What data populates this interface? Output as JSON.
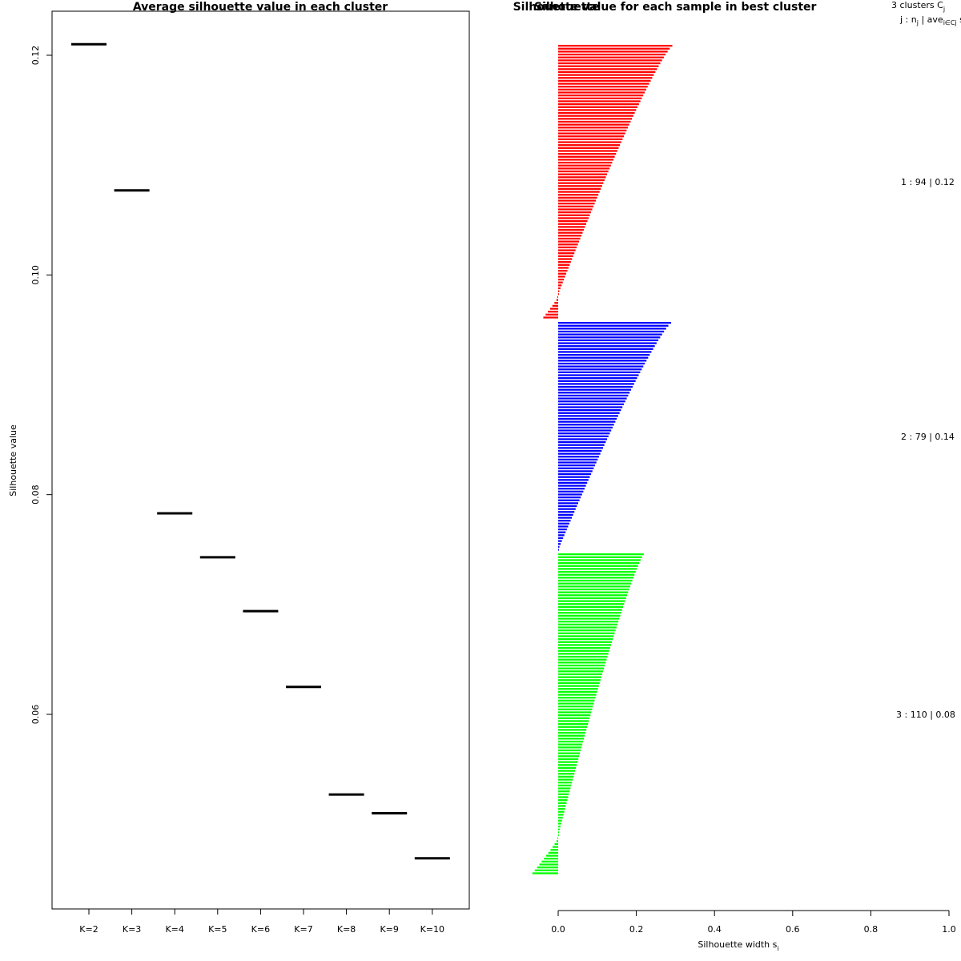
{
  "chart_data": [
    {
      "type": "line",
      "title": "Average silhouette value in each cluster",
      "xlabel": "",
      "ylabel": "Silhouette value",
      "categories": [
        "K=2",
        "K=3",
        "K=4",
        "K=5",
        "K=6",
        "K=7",
        "K=8",
        "K=9",
        "K=10"
      ],
      "values": [
        0.121,
        0.1077,
        0.0783,
        0.0743,
        0.0694,
        0.0625,
        0.0527,
        0.051,
        0.0469
      ],
      "ylim": [
        0.0455,
        0.124
      ],
      "yticks": [
        "0.06",
        "0.08",
        "0.10",
        "0.12"
      ],
      "grid": false
    },
    {
      "type": "bar",
      "title": "Silhouette value for each sample in best cluster",
      "overlap_text": "Silhouette",
      "xlabel": "Silhouette width s",
      "xlabel_sub": "i",
      "xlim": [
        0,
        1
      ],
      "xticks": [
        "0.0",
        "0.2",
        "0.4",
        "0.6",
        "0.8",
        "1.0"
      ],
      "legend_header": {
        "clusters": "3  clusters  C",
        "clusters_sub": "j",
        "row2": "j :  n",
        "row2_sub": "j",
        "row2_mid": " | ave",
        "row2_mid_sub": "i∈Cj",
        "row2_end": "  s"
      },
      "series": [
        {
          "cluster": "1",
          "n": "94",
          "avg": "0.12",
          "label": "1 :  94  |  0.12",
          "color": "#ff0000",
          "min": -0.038,
          "max": 0.292,
          "neg_count": 8
        },
        {
          "cluster": "2",
          "n": "79",
          "avg": "0.14",
          "label": "2 :  79  |  0.14",
          "color": "#0000ff",
          "min": 0.03,
          "max": 0.289,
          "neg_count": 0
        },
        {
          "cluster": "3",
          "n": "110",
          "avg": "0.08",
          "label": "3 :  110  |  0.08",
          "color": "#00ff00",
          "min": -0.066,
          "max": 0.219,
          "neg_count": 13
        }
      ]
    }
  ]
}
